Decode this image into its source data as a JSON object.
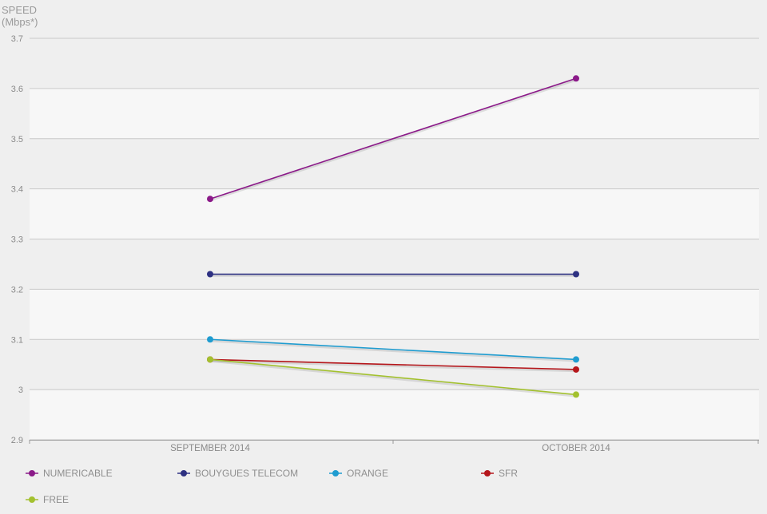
{
  "chart_data": {
    "type": "line",
    "ylabel": [
      "SPEED",
      "(Mbps*)"
    ],
    "categories": [
      "SEPTEMBER 2014",
      "OCTOBER 2014"
    ],
    "ylim": [
      2.9,
      3.7
    ],
    "yticks": [
      "2.9",
      "3",
      "3.1",
      "3.2",
      "3.3",
      "3.4",
      "3.5",
      "3.6",
      "3.7"
    ],
    "grid": true,
    "legend_position": "bottom",
    "series": [
      {
        "name": "NUMERICABLE",
        "values": [
          3.38,
          3.62
        ],
        "color": "#8b1a89"
      },
      {
        "name": "BOUYGUES TELECOM",
        "values": [
          3.23,
          3.23
        ],
        "color": "#2e3182"
      },
      {
        "name": "ORANGE",
        "values": [
          3.1,
          3.06
        ],
        "color": "#1f9cd0"
      },
      {
        "name": "SFR",
        "values": [
          3.06,
          3.04
        ],
        "color": "#b5161b"
      },
      {
        "name": "FREE",
        "values": [
          3.06,
          2.99
        ],
        "color": "#a3c12f"
      }
    ]
  }
}
